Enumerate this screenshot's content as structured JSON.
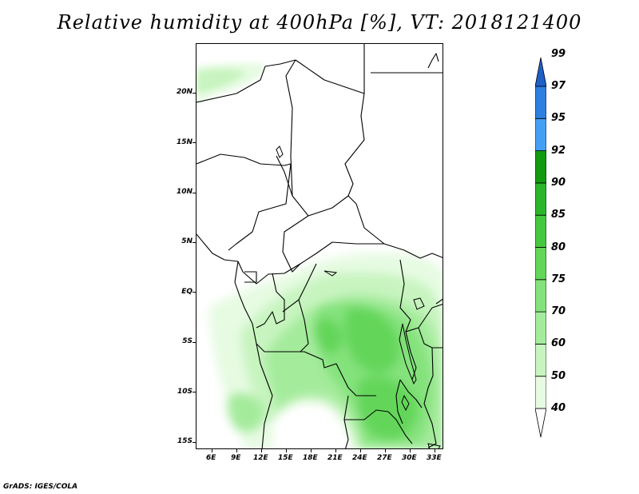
{
  "title": "Relative humidity at 400hPa [%], VT: 2018121400",
  "credit": "GrADS: IGES/COLA",
  "map": {
    "lat_labels": [
      "20N",
      "15N",
      "10N",
      "5N",
      "EQ",
      "5S",
      "10S",
      "15S"
    ],
    "lon_labels": [
      "6E",
      "9E",
      "12E",
      "15E",
      "18E",
      "21E",
      "24E",
      "27E",
      "30E",
      "33E"
    ],
    "extent": {
      "lon": [
        3.5,
        33.2
      ],
      "lat": [
        -16,
        24.5
      ]
    },
    "features": [
      "country borders",
      "coastline",
      "lakes"
    ]
  },
  "colorbar": {
    "levels": [
      "40",
      "50",
      "60",
      "70",
      "75",
      "80",
      "85",
      "90",
      "92",
      "95",
      "97",
      "99"
    ],
    "colors": [
      "#ffffff",
      "#e6fbe2",
      "#c7f4bf",
      "#a4eb9c",
      "#84e27c",
      "#63d65a",
      "#44c83f",
      "#2bb52a",
      "#129a11",
      "#44a0f5",
      "#2d7fe0",
      "#1f5fc8"
    ]
  },
  "colors": {
    "rh_50_60": "#e6fbe2",
    "rh_60_70": "#c7f4bf",
    "rh_70_75": "#a4eb9c",
    "rh_75_80": "#84e27c",
    "rh_80_85": "#63d65a"
  }
}
